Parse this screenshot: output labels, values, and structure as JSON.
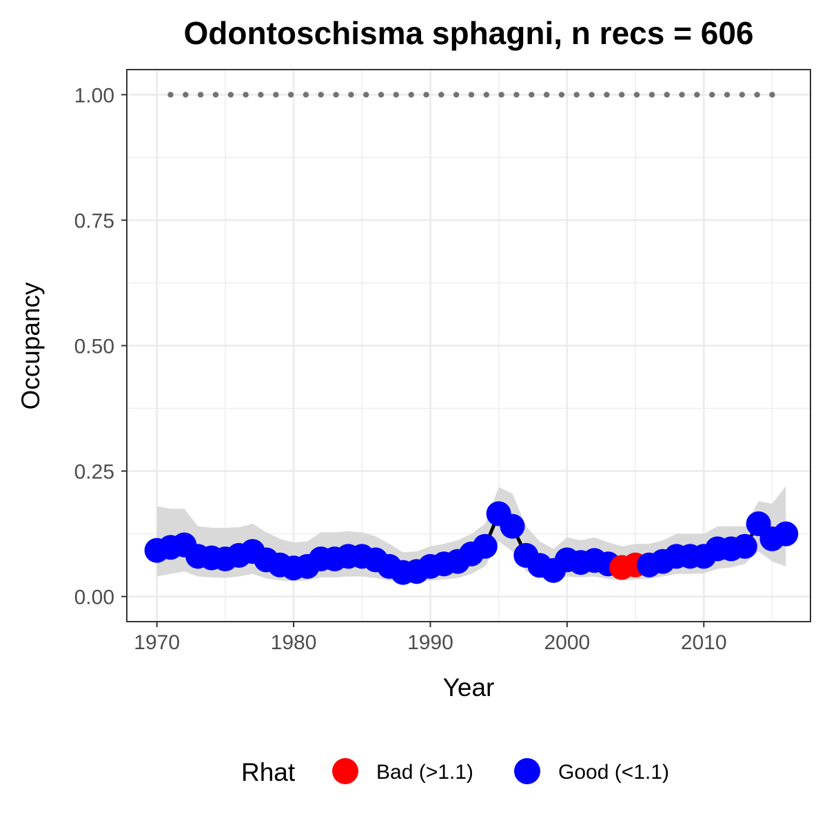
{
  "chart_data": {
    "type": "line",
    "title": "Odontoschisma sphagni, n recs = 606",
    "xlabel": "Year",
    "ylabel": "Occupancy",
    "xlim": [
      1967.8,
      2017.8
    ],
    "ylim": [
      -0.05,
      1.05
    ],
    "x_ticks": [
      1970,
      1980,
      1990,
      2000,
      2010
    ],
    "x_tick_labels": [
      "1970",
      "1980",
      "1990",
      "2000",
      "2010"
    ],
    "y_ticks": [
      0,
      0.25,
      0.5,
      0.75,
      1.0
    ],
    "y_tick_labels": [
      "0.00",
      "0.25",
      "0.50",
      "0.75",
      "1.00"
    ],
    "grid": true,
    "legend_position": "bottom",
    "legend": {
      "title": "Rhat",
      "items": [
        {
          "label": "Bad (>1.1)",
          "color": "#ff0000"
        },
        {
          "label": "Good (<1.1)",
          "color": "#0000ff"
        }
      ]
    },
    "colors": {
      "good": "#0000ff",
      "bad": "#ff0000",
      "line": "#000000",
      "ribbon": "#d9d9d9",
      "reference": "#737373"
    },
    "reference_line": {
      "y": 1.0,
      "x_from": 1971,
      "x_to": 2015,
      "style": "dotted"
    },
    "series": [
      {
        "x": [
          1970,
          1971,
          1972,
          1973,
          1974,
          1975,
          1976,
          1977,
          1978,
          1979,
          1980,
          1981,
          1982,
          1983,
          1984,
          1985,
          1986,
          1987,
          1988,
          1989,
          1990,
          1991,
          1992,
          1993,
          1994,
          1995,
          1996,
          1997,
          1998,
          1999,
          2000,
          2001,
          2002,
          2003,
          2004,
          2005,
          2006,
          2007,
          2008,
          2009,
          2010,
          2011,
          2012,
          2013,
          2014,
          2015,
          2016
        ],
        "y": [
          0.092,
          0.098,
          0.103,
          0.08,
          0.077,
          0.075,
          0.082,
          0.09,
          0.073,
          0.063,
          0.057,
          0.06,
          0.075,
          0.075,
          0.08,
          0.08,
          0.073,
          0.06,
          0.048,
          0.05,
          0.06,
          0.065,
          0.07,
          0.085,
          0.1,
          0.165,
          0.14,
          0.082,
          0.062,
          0.052,
          0.073,
          0.068,
          0.072,
          0.065,
          0.058,
          0.063,
          0.063,
          0.07,
          0.08,
          0.08,
          0.08,
          0.095,
          0.095,
          0.1,
          0.145,
          0.115,
          0.125
        ],
        "lower": [
          0.04,
          0.045,
          0.05,
          0.04,
          0.038,
          0.037,
          0.04,
          0.045,
          0.036,
          0.032,
          0.03,
          0.032,
          0.038,
          0.038,
          0.04,
          0.04,
          0.037,
          0.032,
          0.028,
          0.03,
          0.032,
          0.034,
          0.037,
          0.045,
          0.06,
          0.11,
          0.09,
          0.05,
          0.038,
          0.032,
          0.04,
          0.038,
          0.04,
          0.035,
          0.032,
          0.034,
          0.035,
          0.04,
          0.045,
          0.045,
          0.046,
          0.055,
          0.058,
          0.065,
          0.09,
          0.07,
          0.06
        ],
        "upper": [
          0.18,
          0.175,
          0.175,
          0.14,
          0.137,
          0.137,
          0.138,
          0.145,
          0.128,
          0.115,
          0.108,
          0.11,
          0.128,
          0.128,
          0.13,
          0.128,
          0.12,
          0.105,
          0.088,
          0.09,
          0.1,
          0.105,
          0.112,
          0.125,
          0.145,
          0.218,
          0.205,
          0.14,
          0.11,
          0.095,
          0.118,
          0.112,
          0.118,
          0.108,
          0.1,
          0.105,
          0.105,
          0.112,
          0.125,
          0.125,
          0.125,
          0.14,
          0.14,
          0.14,
          0.19,
          0.185,
          0.22
        ],
        "rhat": [
          "good",
          "good",
          "good",
          "good",
          "good",
          "good",
          "good",
          "good",
          "good",
          "good",
          "good",
          "good",
          "good",
          "good",
          "good",
          "good",
          "good",
          "good",
          "good",
          "good",
          "good",
          "good",
          "good",
          "good",
          "good",
          "good",
          "good",
          "good",
          "good",
          "good",
          "good",
          "good",
          "good",
          "good",
          "bad",
          "bad",
          "good",
          "good",
          "good",
          "good",
          "good",
          "good",
          "good",
          "good",
          "good",
          "good",
          "good"
        ]
      }
    ]
  }
}
